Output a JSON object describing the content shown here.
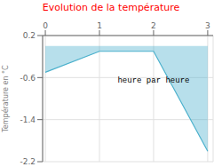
{
  "chart_data": {
    "type": "area",
    "title": "Evolution de la température",
    "ylabel": "Température en °C",
    "annotations": [
      {
        "text": "heure par heure",
        "x": 2.0,
        "y": -0.55
      }
    ],
    "x": [
      0,
      1,
      2,
      3
    ],
    "values": [
      -0.5,
      -0.1,
      -0.1,
      -2.0
    ],
    "baseline": 0.0,
    "color": "#4ab0cc",
    "xlim": [
      -0.05,
      3.1
    ],
    "ylim": [
      -2.2,
      0.2
    ],
    "xticks": [
      0,
      1,
      2,
      3
    ],
    "yticks": [
      0.2,
      -0.6,
      -1.4,
      -2.2
    ],
    "grid": true
  }
}
